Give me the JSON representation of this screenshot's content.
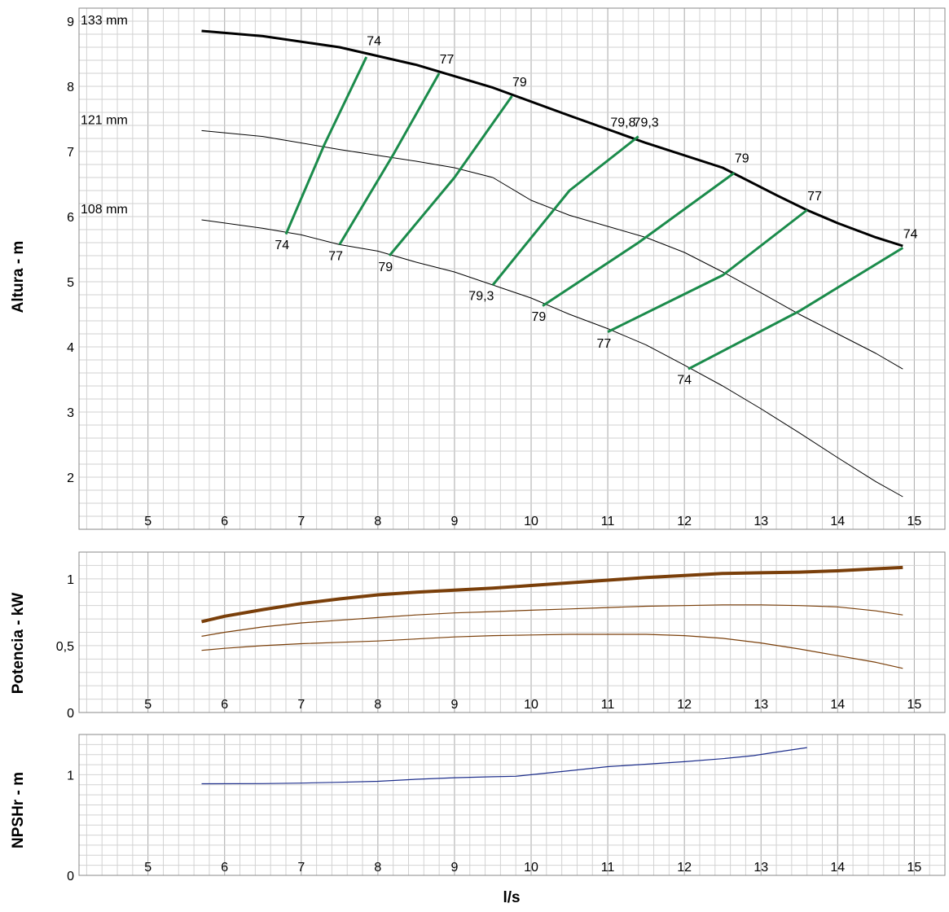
{
  "chart_data": [
    {
      "type": "line",
      "panel": "head",
      "ylabel": "Altura - m",
      "xlim": [
        4.1,
        15.4
      ],
      "ylim": [
        1.2,
        9.2
      ],
      "x_ticks": [
        5,
        6,
        7,
        8,
        9,
        10,
        11,
        12,
        13,
        14,
        15
      ],
      "y_ticks": [
        2,
        3,
        4,
        5,
        6,
        7,
        8,
        9
      ],
      "grid": true,
      "series": [
        {
          "name": "133 mm",
          "color": "#000000",
          "points": [
            [
              5.7,
              8.85
            ],
            [
              6.5,
              8.77
            ],
            [
              7.5,
              8.6
            ],
            [
              8.5,
              8.33
            ],
            [
              9.5,
              7.98
            ],
            [
              10.5,
              7.55
            ],
            [
              11.5,
              7.13
            ],
            [
              12.5,
              6.75
            ],
            [
              13.2,
              6.33
            ],
            [
              13.6,
              6.1
            ],
            [
              14.0,
              5.9
            ],
            [
              14.5,
              5.68
            ],
            [
              14.85,
              5.55
            ]
          ]
        },
        {
          "name": "121 mm",
          "color": "#000000",
          "points": [
            [
              5.7,
              7.32
            ],
            [
              6.5,
              7.23
            ],
            [
              7.5,
              7.03
            ],
            [
              8.5,
              6.85
            ],
            [
              9.0,
              6.75
            ],
            [
              9.5,
              6.6
            ],
            [
              10.0,
              6.25
            ],
            [
              10.5,
              6.02
            ],
            [
              11.0,
              5.85
            ],
            [
              11.5,
              5.68
            ],
            [
              12.0,
              5.45
            ],
            [
              12.5,
              5.15
            ],
            [
              13.0,
              4.83
            ],
            [
              13.5,
              4.5
            ],
            [
              14.0,
              4.2
            ],
            [
              14.5,
              3.9
            ],
            [
              14.85,
              3.66
            ]
          ]
        },
        {
          "name": "108 mm",
          "color": "#000000",
          "points": [
            [
              5.7,
              5.95
            ],
            [
              6.5,
              5.82
            ],
            [
              7.0,
              5.72
            ],
            [
              7.5,
              5.57
            ],
            [
              8.0,
              5.47
            ],
            [
              8.5,
              5.3
            ],
            [
              9.0,
              5.15
            ],
            [
              9.5,
              4.95
            ],
            [
              10.0,
              4.75
            ],
            [
              10.5,
              4.5
            ],
            [
              11.0,
              4.28
            ],
            [
              11.5,
              4.03
            ],
            [
              12.0,
              3.72
            ],
            [
              12.5,
              3.4
            ],
            [
              13.0,
              3.05
            ],
            [
              13.5,
              2.68
            ],
            [
              14.0,
              2.3
            ],
            [
              14.5,
              1.93
            ],
            [
              14.85,
              1.7
            ]
          ]
        }
      ],
      "efficiency_lines": [
        {
          "color": "#1b8b4b",
          "points": [
            [
              6.8,
              5.73
            ],
            [
              7.3,
              7.1
            ],
            [
              7.85,
              8.45
            ]
          ],
          "labels": [
            {
              "text": "74",
              "x": 6.75,
              "y": 5.5
            },
            {
              "text": "74",
              "x": 7.95,
              "y": 8.63
            }
          ]
        },
        {
          "color": "#1b8b4b",
          "points": [
            [
              7.5,
              5.57
            ],
            [
              8.2,
              6.95
            ],
            [
              8.8,
              8.2
            ]
          ],
          "labels": [
            {
              "text": "77",
              "x": 7.45,
              "y": 5.33
            },
            {
              "text": "77",
              "x": 8.9,
              "y": 8.35
            }
          ]
        },
        {
          "color": "#1b8b4b",
          "points": [
            [
              8.15,
              5.4
            ],
            [
              9.0,
              6.6
            ],
            [
              9.75,
              7.85
            ]
          ],
          "labels": [
            {
              "text": "79",
              "x": 8.1,
              "y": 5.16
            },
            {
              "text": "79",
              "x": 9.85,
              "y": 8.0
            }
          ]
        },
        {
          "color": "#1b8b4b",
          "points": [
            [
              9.5,
              4.95
            ],
            [
              10.5,
              6.4
            ],
            [
              11.4,
              7.23
            ]
          ],
          "labels": [
            {
              "text": "79,3",
              "x": 9.35,
              "y": 4.72
            },
            {
              "text": "79,3",
              "x": 11.5,
              "y": 7.38
            }
          ]
        },
        {
          "color": "#1b8b4b",
          "points": [
            [
              10.15,
              4.63
            ],
            [
              11.4,
              5.6
            ],
            [
              12.65,
              6.67
            ]
          ],
          "labels": [
            {
              "text": "79",
              "x": 10.1,
              "y": 4.4
            },
            {
              "text": "79",
              "x": 12.75,
              "y": 6.83
            }
          ]
        },
        {
          "color": "#1b8b4b",
          "points": [
            [
              11.0,
              4.23
            ],
            [
              12.5,
              5.1
            ],
            [
              13.6,
              6.1
            ]
          ],
          "labels": [
            {
              "text": "77",
              "x": 10.95,
              "y": 3.99
            },
            {
              "text": "77",
              "x": 13.7,
              "y": 6.25
            }
          ]
        },
        {
          "color": "#1b8b4b",
          "points": [
            [
              12.05,
              3.66
            ],
            [
              13.5,
              4.55
            ],
            [
              14.85,
              5.52
            ]
          ],
          "labels": [
            {
              "text": "74",
              "x": 12.0,
              "y": 3.43
            },
            {
              "text": "74",
              "x": 14.95,
              "y": 5.67
            }
          ]
        }
      ],
      "overlay_label": {
        "text": "79,8",
        "x": 11.2,
        "y": 7.38
      }
    },
    {
      "type": "line",
      "panel": "power",
      "ylabel": "Potencia - kW",
      "xlim": [
        4.1,
        15.4
      ],
      "ylim": [
        0,
        1.2
      ],
      "x_ticks": [
        5,
        6,
        7,
        8,
        9,
        10,
        11,
        12,
        13,
        14,
        15
      ],
      "y_ticks": [
        {
          "value": 0,
          "label": "0"
        },
        {
          "value": 0.5,
          "label": "0,5"
        },
        {
          "value": 1,
          "label": "1"
        }
      ],
      "grid": true,
      "series": [
        {
          "name": "133 mm",
          "color": "#7a3f0a",
          "width": 4,
          "points": [
            [
              5.7,
              0.68
            ],
            [
              6.0,
              0.72
            ],
            [
              6.5,
              0.77
            ],
            [
              7.0,
              0.815
            ],
            [
              7.5,
              0.85
            ],
            [
              8.0,
              0.88
            ],
            [
              8.5,
              0.9
            ],
            [
              9.0,
              0.915
            ],
            [
              9.5,
              0.93
            ],
            [
              10.0,
              0.95
            ],
            [
              10.5,
              0.97
            ],
            [
              11.0,
              0.99
            ],
            [
              11.5,
              1.01
            ],
            [
              12.0,
              1.025
            ],
            [
              12.5,
              1.04
            ],
            [
              13.0,
              1.045
            ],
            [
              13.5,
              1.05
            ],
            [
              14.0,
              1.06
            ],
            [
              14.5,
              1.075
            ],
            [
              14.85,
              1.085
            ]
          ]
        },
        {
          "name": "121 mm",
          "color": "#7a3f0a",
          "width": 1.2,
          "points": [
            [
              5.7,
              0.57
            ],
            [
              6.0,
              0.6
            ],
            [
              6.5,
              0.64
            ],
            [
              7.0,
              0.67
            ],
            [
              7.5,
              0.69
            ],
            [
              8.0,
              0.71
            ],
            [
              8.5,
              0.73
            ],
            [
              9.0,
              0.745
            ],
            [
              9.5,
              0.755
            ],
            [
              10.0,
              0.765
            ],
            [
              10.5,
              0.775
            ],
            [
              11.0,
              0.785
            ],
            [
              11.5,
              0.795
            ],
            [
              12.0,
              0.8
            ],
            [
              12.5,
              0.805
            ],
            [
              13.0,
              0.805
            ],
            [
              13.5,
              0.8
            ],
            [
              14.0,
              0.79
            ],
            [
              14.5,
              0.76
            ],
            [
              14.85,
              0.73
            ]
          ]
        },
        {
          "name": "108 mm",
          "color": "#7a3f0a",
          "width": 1.2,
          "points": [
            [
              5.7,
              0.465
            ],
            [
              6.0,
              0.48
            ],
            [
              6.5,
              0.5
            ],
            [
              7.0,
              0.515
            ],
            [
              7.5,
              0.525
            ],
            [
              8.0,
              0.535
            ],
            [
              8.5,
              0.55
            ],
            [
              9.0,
              0.565
            ],
            [
              9.5,
              0.575
            ],
            [
              10.0,
              0.58
            ],
            [
              10.5,
              0.585
            ],
            [
              11.0,
              0.585
            ],
            [
              11.5,
              0.585
            ],
            [
              12.0,
              0.575
            ],
            [
              12.5,
              0.555
            ],
            [
              13.0,
              0.52
            ],
            [
              13.5,
              0.475
            ],
            [
              14.0,
              0.425
            ],
            [
              14.5,
              0.375
            ],
            [
              14.85,
              0.33
            ]
          ]
        }
      ]
    },
    {
      "type": "line",
      "panel": "npsh",
      "ylabel": "NPSHr - m",
      "xlabel": "l/s",
      "xlim": [
        4.1,
        15.4
      ],
      "ylim": [
        0,
        1.4
      ],
      "x_ticks": [
        5,
        6,
        7,
        8,
        9,
        10,
        11,
        12,
        13,
        14,
        15
      ],
      "y_ticks": [
        {
          "value": 0,
          "label": "0"
        },
        {
          "value": 1,
          "label": "1"
        }
      ],
      "grid": true,
      "series": [
        {
          "color": "#1e2f8c",
          "width": 1.2,
          "points": [
            [
              5.7,
              0.91
            ],
            [
              6.5,
              0.912
            ],
            [
              7.0,
              0.917
            ],
            [
              7.5,
              0.925
            ],
            [
              8.0,
              0.935
            ],
            [
              8.5,
              0.955
            ],
            [
              9.0,
              0.97
            ],
            [
              9.5,
              0.98
            ],
            [
              9.8,
              0.985
            ],
            [
              10.0,
              1.0
            ],
            [
              10.5,
              1.04
            ],
            [
              11.0,
              1.08
            ],
            [
              11.5,
              1.105
            ],
            [
              12.0,
              1.13
            ],
            [
              12.5,
              1.16
            ],
            [
              12.9,
              1.19
            ],
            [
              13.2,
              1.225
            ],
            [
              13.6,
              1.27
            ]
          ]
        }
      ]
    }
  ]
}
